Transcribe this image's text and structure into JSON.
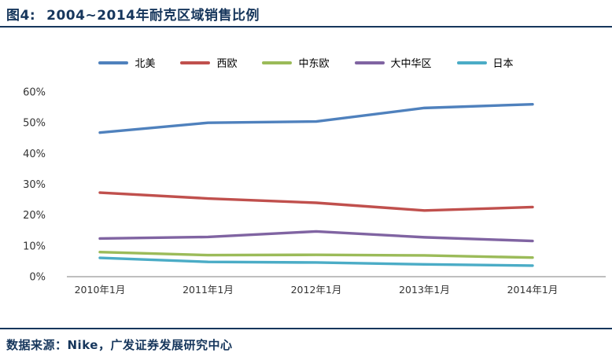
{
  "header": {
    "title_prefix": "图4:",
    "title": "2004~2014年耐克区域销售比例"
  },
  "footer": {
    "source": "数据来源：Nike，广发证券发展研究中心"
  },
  "colors": {
    "accent_navy": "#16365C",
    "axis_line": "#999999",
    "tick_text": "#333333"
  },
  "chart_data": {
    "type": "line",
    "title": "2004~2014年耐克区域销售比例",
    "categories": [
      "2010年1月",
      "2011年1月",
      "2012年1月",
      "2013年1月",
      "2014年1月"
    ],
    "series": [
      {
        "name": "北美",
        "color": "#4F81BD",
        "values": [
          46.8,
          50.0,
          50.4,
          54.8,
          56.0
        ]
      },
      {
        "name": "西欧",
        "color": "#C0504D",
        "values": [
          27.3,
          25.4,
          24.0,
          21.5,
          22.6
        ]
      },
      {
        "name": "中东欧",
        "color": "#9BBB59",
        "values": [
          8.0,
          7.0,
          7.1,
          6.9,
          6.2
        ]
      },
      {
        "name": "大中华区",
        "color": "#8064A2",
        "values": [
          12.4,
          12.9,
          14.7,
          12.8,
          11.6
        ]
      },
      {
        "name": "日本",
        "color": "#4BACC6",
        "values": [
          6.1,
          4.8,
          4.6,
          4.0,
          3.6
        ]
      }
    ],
    "xlabel": "",
    "ylabel": "",
    "ylim": [
      0,
      60
    ],
    "ytick_step": 10,
    "ytick_format": "percent",
    "grid": false,
    "legend_position": "top"
  }
}
